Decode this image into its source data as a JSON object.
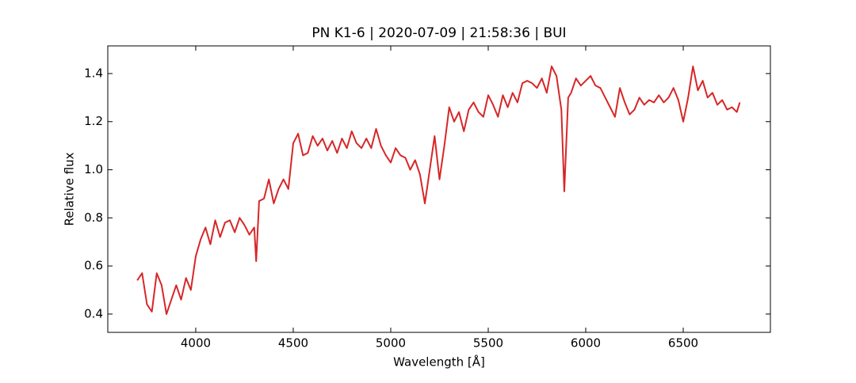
{
  "chart_data": {
    "type": "line",
    "title": "PN K1-6 | 2020-07-09 | 21:58:36 | BUI",
    "xlabel": "Wavelength [Å]",
    "ylabel": "Relative flux",
    "xlim": [
      3549,
      6947
    ],
    "ylim": [
      0.324,
      1.515
    ],
    "xticks": [
      4000,
      4500,
      5000,
      5500,
      6000,
      6500
    ],
    "yticks": [
      0.4,
      0.6,
      0.8,
      {
        "value": 1,
        "label": "1.0"
      },
      1.2,
      1.4
    ],
    "grid": false,
    "x": [
      3700,
      3725,
      3750,
      3775,
      3800,
      3825,
      3850,
      3875,
      3900,
      3925,
      3950,
      3975,
      4000,
      4025,
      4050,
      4075,
      4100,
      4125,
      4150,
      4175,
      4200,
      4225,
      4250,
      4275,
      4300,
      4310,
      4325,
      4350,
      4375,
      4400,
      4425,
      4450,
      4475,
      4500,
      4525,
      4550,
      4575,
      4600,
      4625,
      4650,
      4675,
      4700,
      4725,
      4750,
      4775,
      4800,
      4825,
      4850,
      4875,
      4900,
      4925,
      4950,
      4975,
      5000,
      5025,
      5050,
      5075,
      5100,
      5125,
      5150,
      5175,
      5200,
      5225,
      5250,
      5275,
      5300,
      5325,
      5350,
      5375,
      5400,
      5425,
      5450,
      5475,
      5500,
      5525,
      5550,
      5575,
      5600,
      5625,
      5650,
      5675,
      5700,
      5725,
      5750,
      5775,
      5800,
      5825,
      5850,
      5875,
      5890,
      5910,
      5925,
      5950,
      5975,
      6000,
      6025,
      6050,
      6075,
      6100,
      6125,
      6150,
      6175,
      6200,
      6225,
      6250,
      6275,
      6300,
      6325,
      6350,
      6375,
      6400,
      6425,
      6450,
      6475,
      6500,
      6525,
      6550,
      6575,
      6600,
      6625,
      6650,
      6675,
      6700,
      6725,
      6750,
      6775,
      6790
    ],
    "series": [
      {
        "color": "#d62728",
        "values": [
          0.54,
          0.57,
          0.44,
          0.41,
          0.57,
          0.52,
          0.4,
          0.46,
          0.52,
          0.46,
          0.55,
          0.5,
          0.64,
          0.71,
          0.76,
          0.69,
          0.79,
          0.72,
          0.78,
          0.79,
          0.74,
          0.8,
          0.77,
          0.73,
          0.76,
          0.62,
          0.87,
          0.88,
          0.96,
          0.86,
          0.92,
          0.96,
          0.92,
          1.11,
          1.15,
          1.06,
          1.07,
          1.14,
          1.1,
          1.13,
          1.08,
          1.12,
          1.07,
          1.13,
          1.09,
          1.16,
          1.11,
          1.09,
          1.13,
          1.09,
          1.17,
          1.1,
          1.06,
          1.03,
          1.09,
          1.06,
          1.05,
          1.0,
          1.04,
          0.98,
          0.86,
          1.0,
          1.14,
          0.96,
          1.1,
          1.26,
          1.2,
          1.24,
          1.16,
          1.25,
          1.28,
          1.24,
          1.22,
          1.31,
          1.27,
          1.22,
          1.31,
          1.26,
          1.32,
          1.28,
          1.36,
          1.37,
          1.36,
          1.34,
          1.38,
          1.32,
          1.43,
          1.39,
          1.25,
          0.91,
          1.3,
          1.32,
          1.38,
          1.35,
          1.37,
          1.39,
          1.35,
          1.34,
          1.3,
          1.26,
          1.22,
          1.34,
          1.28,
          1.23,
          1.25,
          1.3,
          1.27,
          1.29,
          1.28,
          1.31,
          1.28,
          1.3,
          1.34,
          1.29,
          1.2,
          1.3,
          1.43,
          1.33,
          1.37,
          1.3,
          1.32,
          1.27,
          1.29,
          1.25,
          1.26,
          1.24,
          1.28
        ]
      }
    ]
  }
}
